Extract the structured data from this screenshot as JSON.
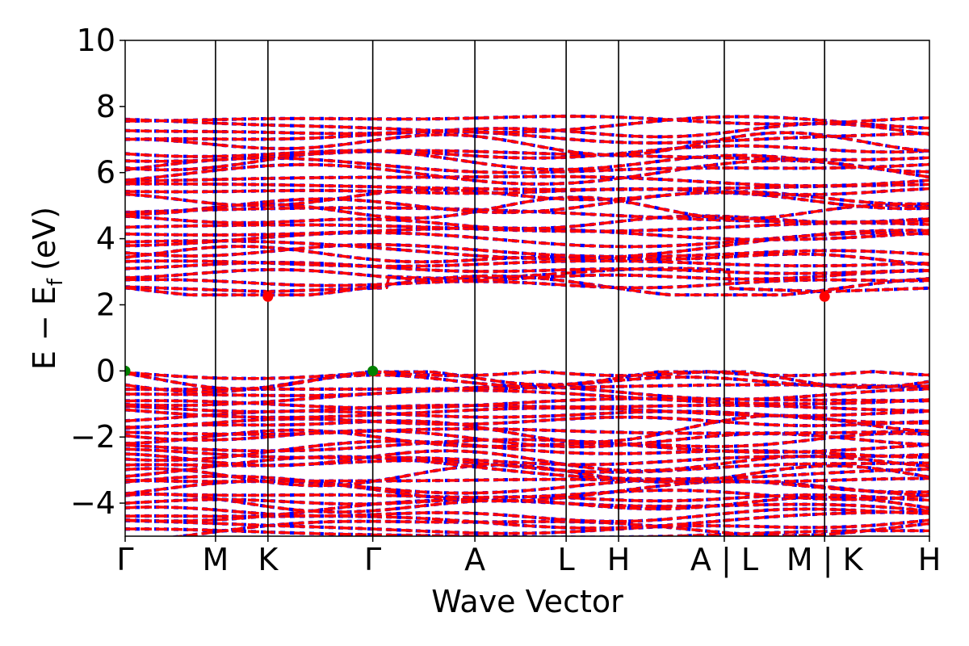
{
  "chart_data": {
    "type": "line",
    "title": "",
    "xlabel": "Wave Vector",
    "ylabel_main": "E − E",
    "ylabel_sub": "f",
    "ylabel_unit": "(eV)",
    "ylim": [
      -5,
      10
    ],
    "yticks": [
      {
        "value": 10,
        "label": "10"
      },
      {
        "value": 8,
        "label": "8"
      },
      {
        "value": 6,
        "label": "6"
      },
      {
        "value": 4,
        "label": "4"
      },
      {
        "value": 2,
        "label": "2"
      },
      {
        "value": 0,
        "label": "0"
      },
      {
        "value": -2,
        "label": "−2"
      },
      {
        "value": -4,
        "label": "−4"
      }
    ],
    "kpath": [
      {
        "label": "Γ",
        "k": 0.0
      },
      {
        "label": "M",
        "k": 1.0
      },
      {
        "label": "K",
        "k": 1.58
      },
      {
        "label": "Γ",
        "k": 2.74
      },
      {
        "label": "A",
        "k": 3.87
      },
      {
        "label": "L",
        "k": 4.88
      },
      {
        "label": "H",
        "k": 5.46
      },
      {
        "label": "A | L",
        "k": 6.63
      },
      {
        "label": "M | K",
        "k": 7.74
      },
      {
        "label": "H",
        "k": 8.9
      }
    ],
    "band_edges": {
      "cbm": [
        {
          "k": 1.58,
          "energy": 2.25
        },
        {
          "k": 7.74,
          "energy": 2.25
        }
      ],
      "vbm": [
        {
          "k": 0.0,
          "energy": 0.0
        },
        {
          "k": 2.74,
          "energy": 0.0
        }
      ]
    },
    "band_groups": [
      {
        "name": "conduction",
        "emin": 2.25,
        "emax": 7.7,
        "count": 30
      },
      {
        "name": "valence",
        "emin": -5.0,
        "emax": 0.0,
        "count": 34
      }
    ],
    "colors": {
      "spin_up": "#ff0000",
      "spin_down": "#0000ff",
      "cbm_marker": "#ff0000",
      "vbm_marker": "#008000",
      "axes": "#000000"
    },
    "grid": false
  }
}
